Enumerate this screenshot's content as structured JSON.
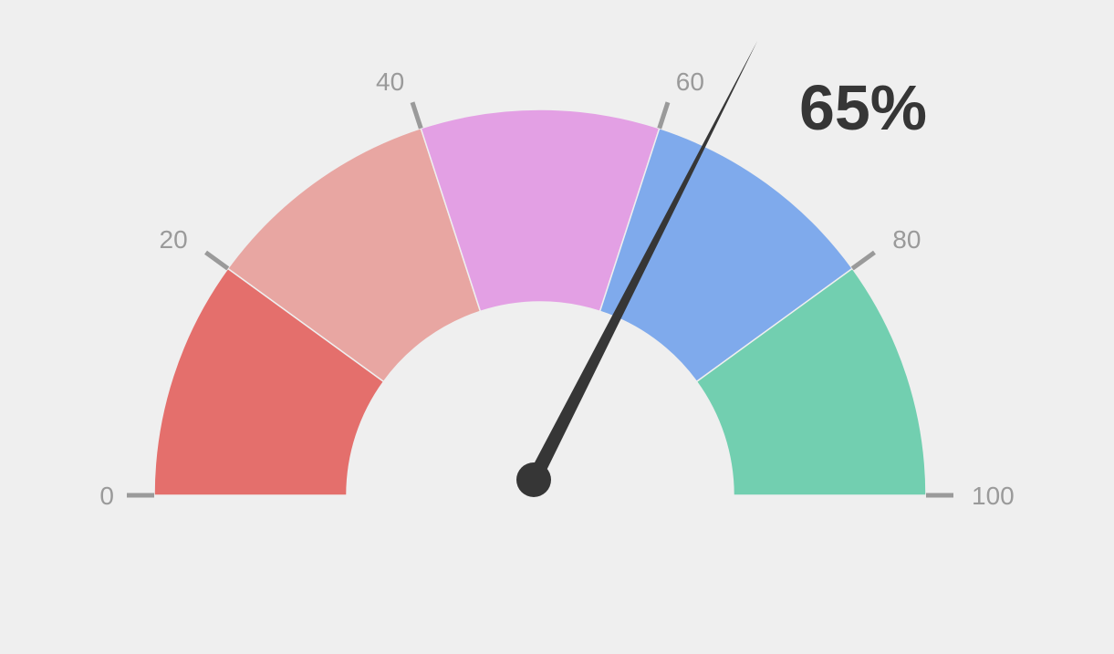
{
  "chart_data": {
    "type": "gauge",
    "value": 65,
    "value_label": "65%",
    "min": 0,
    "max": 100,
    "ticks": [
      0,
      20,
      40,
      60,
      80,
      100
    ],
    "tick_labels": [
      "0",
      "20",
      "40",
      "60",
      "80",
      "100"
    ],
    "bands": [
      {
        "from": 0,
        "to": 20,
        "color": "#e46f6c"
      },
      {
        "from": 20,
        "to": 40,
        "color": "#e8a6a2"
      },
      {
        "from": 40,
        "to": 60,
        "color": "#e3a0e4"
      },
      {
        "from": 60,
        "to": 80,
        "color": "#7faaec"
      },
      {
        "from": 80,
        "to": 100,
        "color": "#72cfb0"
      }
    ],
    "colors": {
      "background": "#efefef",
      "needle": "#363636",
      "tick": "#9a9a9a",
      "tick_label": "#9a9a9a",
      "value_label": "#363636"
    }
  }
}
